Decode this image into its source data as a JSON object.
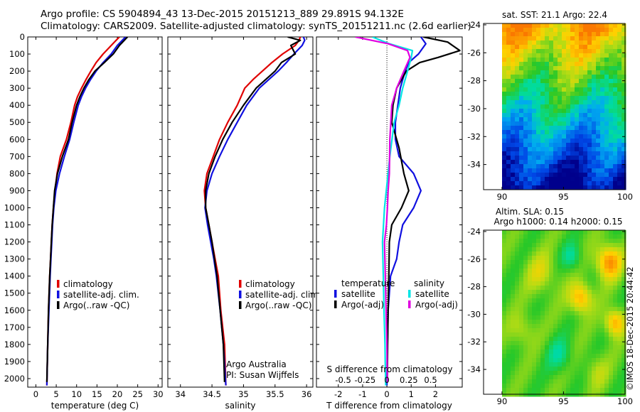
{
  "header": {
    "line1": "Argo profile: CS 5904894_43 13-Dec-2015 20151213_889 29.891S 94.132E",
    "line2": "Climatology: CARS2009. Satellite-adjusted climatology: synTS_20151211.nc (2.6d earlier)"
  },
  "colors": {
    "climatology": "#e00000",
    "satellite": "#1010e0",
    "argo": "#000000",
    "salinity_satellite": "#00e5e5",
    "salinity_argo": "#e000e0"
  },
  "footer_text": "©IMOS 18-Dec-2015 20:44:42",
  "annotation": {
    "line1": "Argo Australia",
    "line2": "PI: Susan Wijffels"
  },
  "chart_data": [
    {
      "type": "line",
      "xlabel": "temperature (deg C)",
      "xlim": [
        -2,
        31
      ],
      "xticks": [
        0,
        5,
        10,
        15,
        20,
        25,
        30
      ],
      "ylim": [
        2050,
        0
      ],
      "yticks": [
        0,
        100,
        200,
        300,
        400,
        500,
        600,
        700,
        800,
        900,
        1000,
        1100,
        1200,
        1300,
        1400,
        1500,
        1600,
        1700,
        1800,
        1900,
        2000
      ],
      "legend": [
        "climatology",
        "satellite-adj. clim.",
        "Argo(..raw -QC)"
      ],
      "series": [
        {
          "name": "climatology",
          "color": "#e00000",
          "x": [
            20.5,
            19.5,
            18.5,
            16.5,
            14.8,
            13.5,
            12.3,
            11.2,
            10.2,
            9.5,
            8.6,
            7.5,
            6,
            5.2,
            4.7,
            4.3,
            4,
            3.8,
            3.6,
            3.4,
            3.1,
            2.9,
            2.7
          ],
          "y": [
            0,
            25,
            50,
            100,
            150,
            200,
            250,
            300,
            350,
            400,
            500,
            600,
            700,
            800,
            900,
            1000,
            1100,
            1200,
            1300,
            1400,
            1600,
            1800,
            2040
          ]
        },
        {
          "name": "satellite-adj. clim.",
          "color": "#1010e0",
          "x": [
            22,
            21,
            20,
            18.5,
            16.5,
            14.8,
            13.4,
            12.2,
            11.2,
            10.4,
            9.3,
            8.3,
            7,
            5.8,
            4.9,
            4.4,
            4.1,
            3.9,
            3.7,
            3.5,
            3.2,
            2.9,
            2.7
          ],
          "y": [
            0,
            25,
            50,
            100,
            150,
            200,
            250,
            300,
            350,
            400,
            500,
            600,
            700,
            800,
            900,
            1000,
            1100,
            1200,
            1300,
            1400,
            1600,
            1800,
            2040
          ]
        },
        {
          "name": "Argo(..raw -QC)",
          "color": "#000000",
          "x": [
            22.5,
            21.5,
            20.5,
            19,
            16.8,
            14.5,
            13,
            11.8,
            10.8,
            10,
            8.9,
            8,
            6.5,
            5.3,
            4.6,
            4.3,
            4,
            3.8,
            3.6,
            3.4,
            3.1,
            2.9,
            2.7
          ],
          "y": [
            0,
            25,
            50,
            100,
            150,
            200,
            250,
            300,
            350,
            400,
            500,
            600,
            700,
            800,
            900,
            1000,
            1100,
            1200,
            1300,
            1400,
            1600,
            1800,
            2020
          ]
        }
      ]
    },
    {
      "type": "line",
      "xlabel": "salinity",
      "xlim": [
        33.8,
        36.1
      ],
      "xticks": [
        34,
        34.5,
        35,
        35.5,
        36
      ],
      "ylim": [
        2050,
        0
      ],
      "legend": [
        "climatology",
        "satellite-adj. clim.",
        "Argo(..raw -QC)"
      ],
      "series": [
        {
          "name": "climatology",
          "color": "#e00000",
          "x": [
            35.9,
            35.88,
            35.82,
            35.62,
            35.45,
            35.3,
            35.15,
            35.02,
            34.9,
            34.75,
            34.62,
            34.52,
            34.42,
            34.38,
            34.4,
            34.45,
            34.5,
            34.55,
            34.6,
            34.64,
            34.7,
            34.72
          ],
          "y": [
            0,
            20,
            50,
            100,
            150,
            200,
            250,
            300,
            400,
            500,
            600,
            700,
            800,
            900,
            1000,
            1100,
            1200,
            1300,
            1400,
            1600,
            1800,
            2040
          ]
        },
        {
          "name": "satellite-adj. clim.",
          "color": "#1010e0",
          "x": [
            35.95,
            35.97,
            35.93,
            35.8,
            35.68,
            35.55,
            35.4,
            35.25,
            35.05,
            34.9,
            34.75,
            34.62,
            34.5,
            34.42,
            34.39,
            34.43,
            34.48,
            34.53,
            34.57,
            34.63,
            34.68,
            34.72
          ],
          "y": [
            0,
            20,
            50,
            100,
            150,
            200,
            250,
            300,
            400,
            500,
            600,
            700,
            800,
            900,
            1000,
            1100,
            1200,
            1300,
            1400,
            1600,
            1800,
            2040
          ]
        },
        {
          "name": "Argo(..raw -QC)",
          "color": "#000000",
          "x": [
            35.7,
            35.9,
            35.75,
            35.82,
            35.6,
            35.5,
            35.35,
            35.2,
            35,
            34.82,
            34.67,
            34.55,
            34.45,
            34.4,
            34.4,
            34.45,
            34.5,
            34.54,
            34.58,
            34.63,
            34.68,
            34.7
          ],
          "y": [
            0,
            20,
            50,
            100,
            150,
            200,
            250,
            300,
            400,
            500,
            600,
            700,
            800,
            900,
            1000,
            1100,
            1200,
            1300,
            1400,
            1600,
            1800,
            2020
          ]
        }
      ]
    },
    {
      "type": "line",
      "xlabel": "T difference from climatology",
      "xlabel_top": "S difference from climatology",
      "xlim": [
        -2.9,
        3.1
      ],
      "xticks": [
        -2,
        -1,
        0,
        1,
        2
      ],
      "xticks_top_labels": [
        "-0.5",
        "-0.25",
        "0",
        "0.25",
        "0.5"
      ],
      "xticks_top_positions": [
        -1.8,
        -0.9,
        0,
        0.9,
        1.8
      ],
      "ylim": [
        2050,
        0
      ],
      "legend": {
        "temperature": "temperature",
        "salinity": "salinity",
        "satellite": "satellite",
        "argo_adj": "Argo(-adj)"
      },
      "series": [
        {
          "name": "temperature satellite",
          "color": "#1010e0",
          "x": [
            1.4,
            1.6,
            1.3,
            0.9,
            0.75,
            0.55,
            0.45,
            0.35,
            0.35,
            0.5,
            1.1,
            1.4,
            1.1,
            0.65,
            0.5,
            0.4,
            0.15,
            0.05,
            0.02,
            0,
            0
          ],
          "y": [
            0,
            40,
            100,
            150,
            200,
            300,
            400,
            500,
            600,
            700,
            800,
            900,
            1000,
            1100,
            1200,
            1300,
            1400,
            1600,
            1800,
            2000,
            2040
          ]
        },
        {
          "name": "temperature Argo(-adj)",
          "color": "#000000",
          "x": [
            1.5,
            2.5,
            3,
            2.1,
            1.35,
            0.8,
            0.4,
            0.25,
            0.2,
            0.5,
            0.7,
            0.9,
            0.6,
            0.2,
            0.1,
            0.08,
            0.05,
            0.03,
            0.02,
            0.01
          ],
          "y": [
            0,
            30,
            80,
            120,
            150,
            200,
            300,
            400,
            500,
            650,
            800,
            900,
            1000,
            1100,
            1200,
            1400,
            1600,
            1800,
            1950,
            2020
          ]
        },
        {
          "name": "salinity satellite",
          "color": "#00e5e5",
          "x": [
            -0.6,
            0.1,
            1.05,
            1,
            0.85,
            0.65,
            0.5,
            0.3,
            0.12,
            -0.1,
            -0.18,
            -0.15,
            -0.12,
            -0.1,
            -0.08,
            -0.07,
            -0.05
          ],
          "y": [
            0,
            40,
            80,
            120,
            200,
            300,
            400,
            500,
            700,
            1000,
            1200,
            1400,
            1600,
            1700,
            1800,
            1900,
            2040
          ]
        },
        {
          "name": "salinity Argo(-adj)",
          "color": "#e000e0",
          "x": [
            -1.3,
            0.05,
            0.85,
            0.95,
            0.7,
            0.4,
            0.2,
            0.12,
            0.1,
            0.05,
            0.02,
            -0.02,
            -0.1,
            -0.05,
            0,
            0.02
          ],
          "y": [
            0,
            40,
            80,
            120,
            200,
            300,
            400,
            600,
            800,
            900,
            1000,
            1100,
            1200,
            1500,
            1800,
            2020
          ]
        }
      ]
    },
    {
      "type": "heatmap",
      "title": "sat. SST: 21.1  Argo: 22.4",
      "xlim": [
        88.5,
        100
      ],
      "xticks": [
        90,
        95,
        100
      ],
      "ylim": [
        -35.8,
        -23.9
      ],
      "yticks": [
        -24,
        -26,
        -28,
        -30,
        -32,
        -34
      ]
    },
    {
      "type": "heatmap",
      "title": "Altim. SLA: 0.15",
      "subtitle": "Argo h1000: 0.14 h2000: 0.15",
      "xlim": [
        88.5,
        100
      ],
      "xticks": [
        90,
        95,
        100
      ],
      "ylim": [
        -35.8,
        -23.9
      ],
      "yticks": [
        -24,
        -26,
        -28,
        -30,
        -32,
        -34
      ]
    }
  ]
}
